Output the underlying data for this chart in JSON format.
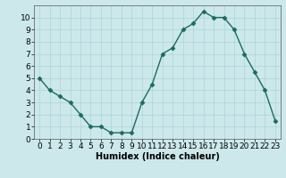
{
  "x": [
    0,
    1,
    2,
    3,
    4,
    5,
    6,
    7,
    8,
    9,
    10,
    11,
    12,
    13,
    14,
    15,
    16,
    17,
    18,
    19,
    20,
    21,
    22,
    23
  ],
  "y": [
    5,
    4,
    3.5,
    3,
    2,
    1,
    1,
    0.5,
    0.5,
    0.5,
    3,
    4.5,
    7,
    7.5,
    9,
    9.5,
    10.5,
    10,
    10,
    9,
    7,
    5.5,
    4,
    1.5
  ],
  "line_color": "#1a6b5e",
  "marker_color": "#1a6b5e",
  "bg_color": "#cce8eb",
  "grid_color": "#aad4d8",
  "xlabel": "Humidex (Indice chaleur)",
  "xlim": [
    -0.5,
    23.5
  ],
  "ylim": [
    0,
    11
  ],
  "yticks": [
    0,
    1,
    2,
    3,
    4,
    5,
    6,
    7,
    8,
    9,
    10
  ],
  "xticks": [
    0,
    1,
    2,
    3,
    4,
    5,
    6,
    7,
    8,
    9,
    10,
    11,
    12,
    13,
    14,
    15,
    16,
    17,
    18,
    19,
    20,
    21,
    22,
    23
  ],
  "xlabel_fontsize": 7,
  "tick_fontsize": 6.5,
  "linewidth": 1.0,
  "markersize": 2.5
}
